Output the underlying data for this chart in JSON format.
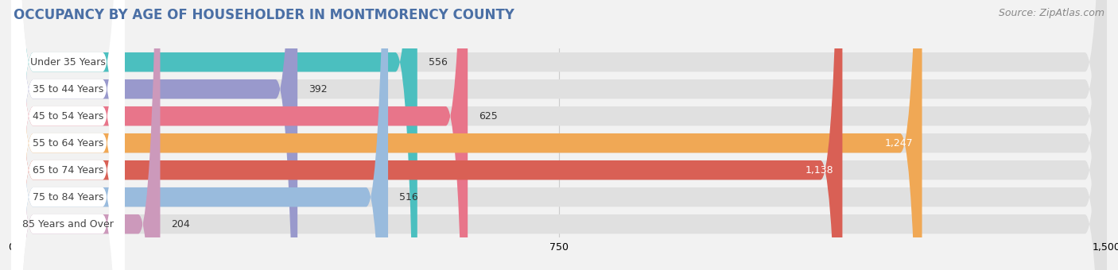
{
  "title": "OCCUPANCY BY AGE OF HOUSEHOLDER IN MONTMORENCY COUNTY",
  "source": "Source: ZipAtlas.com",
  "categories": [
    "Under 35 Years",
    "35 to 44 Years",
    "45 to 54 Years",
    "55 to 64 Years",
    "65 to 74 Years",
    "75 to 84 Years",
    "85 Years and Over"
  ],
  "values": [
    556,
    392,
    625,
    1247,
    1138,
    516,
    204
  ],
  "bar_colors": [
    "#4bbfbf",
    "#9999cc",
    "#e8758a",
    "#f0a855",
    "#d96055",
    "#99bbdd",
    "#cc99bb"
  ],
  "label_colors_inside": [
    "#333333",
    "#333333",
    "#333333",
    "#ffffff",
    "#ffffff",
    "#333333",
    "#333333"
  ],
  "xlim": [
    0,
    1500
  ],
  "xticks": [
    0,
    750,
    1500
  ],
  "bg_color": "#f2f2f2",
  "bar_bg_color": "#e0e0e0",
  "label_bg_color": "#ffffff",
  "title_color": "#4a6fa5",
  "title_fontsize": 12,
  "source_fontsize": 9,
  "bar_height": 0.72,
  "figsize": [
    14.06,
    3.4
  ],
  "dpi": 100
}
